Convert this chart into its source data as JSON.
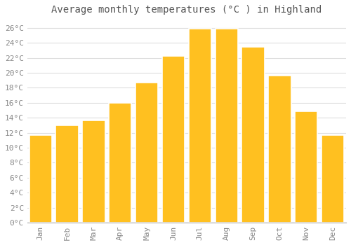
{
  "title": "Average monthly temperatures (°C ) in Highland",
  "months": [
    "Jan",
    "Feb",
    "Mar",
    "Apr",
    "May",
    "Jun",
    "Jul",
    "Aug",
    "Sep",
    "Oct",
    "Nov",
    "Dec"
  ],
  "values": [
    11.7,
    13.0,
    13.6,
    16.0,
    18.7,
    22.2,
    25.9,
    25.9,
    23.5,
    19.6,
    14.9,
    11.7
  ],
  "bar_color": "#FFC020",
  "bar_edge_color": "#FFFFFF",
  "background_color": "#FFFFFF",
  "grid_color": "#DDDDDD",
  "text_color": "#888888",
  "title_color": "#555555",
  "ylim": [
    0,
    27
  ],
  "ytick_step": 2,
  "title_fontsize": 10,
  "tick_fontsize": 8
}
